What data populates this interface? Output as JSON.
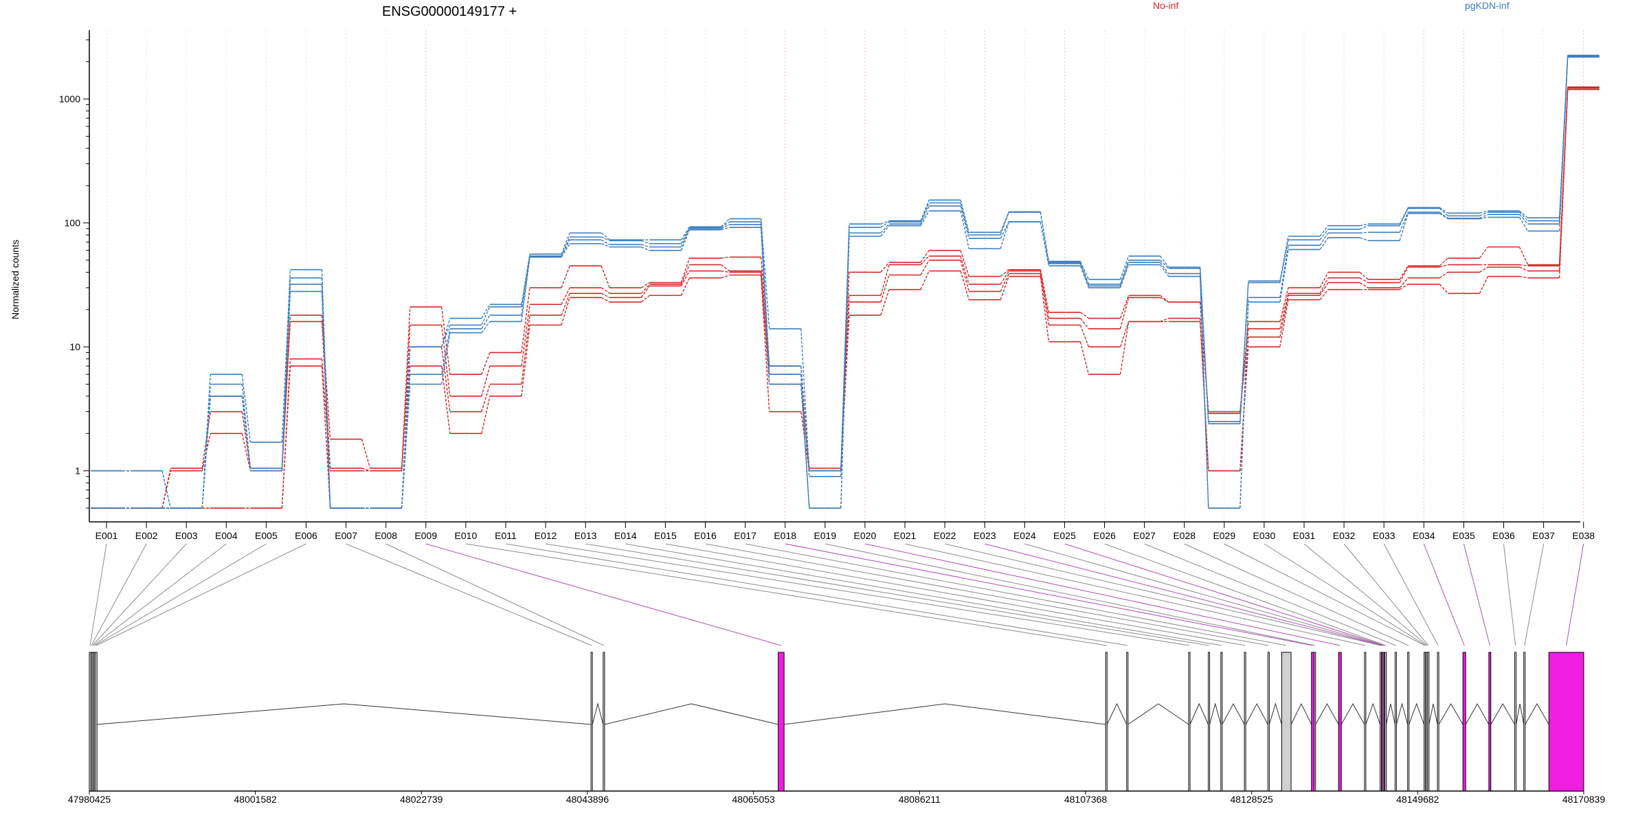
{
  "chart_data": {
    "type": "line",
    "title": "ENSG00000149177 +",
    "ylabel": "Normalized counts",
    "y_scale": "log",
    "ylim": [
      0.5,
      3000
    ],
    "y_ticks": [
      1,
      10,
      100,
      1000
    ],
    "y_tick_labels": [
      "1",
      "10",
      "100",
      "1000"
    ],
    "grid": "vertical dotted lines at each exon",
    "legend_placement": "top",
    "categories": [
      "E001",
      "E002",
      "E003",
      "E004",
      "E005",
      "E006",
      "E007",
      "E008",
      "E009",
      "E010",
      "E011",
      "E012",
      "E013",
      "E014",
      "E015",
      "E016",
      "E017",
      "E018",
      "E019",
      "E020",
      "E021",
      "E022",
      "E023",
      "E024",
      "E025",
      "E026",
      "E027",
      "E028",
      "E029",
      "E030",
      "E031",
      "E032",
      "E033",
      "E034",
      "E035",
      "E036",
      "E037",
      "E038"
    ],
    "groups": [
      {
        "name": "No-inf",
        "color": "#d62728",
        "samples": [
          {
            "values": [
              0.5,
              0.5,
              1.05,
              3.0,
              1.05,
              18,
              1.8,
              1.05,
              21,
              6.0,
              9.0,
              30,
              45,
              30,
              33,
              52,
              53,
              7.0,
              1.05,
              40,
              48,
              60,
              37,
              42,
              19,
              17,
              26,
              23,
              3.0,
              16,
              30,
              40,
              35,
              45,
              52,
              64,
              46,
              1250
            ]
          },
          {
            "values": [
              0.5,
              0.5,
              1.0,
              2.0,
              1.0,
              16,
              1.05,
              1.0,
              15,
              4.0,
              7.0,
              22,
              30,
              27,
              32,
              46,
              41,
              6.0,
              1.0,
              26,
              46,
              54,
              32,
              41,
              17,
              14,
              25,
              23,
              2.9,
              14,
              27,
              36,
              33,
              44,
              46,
              46,
              45,
              1240
            ]
          },
          {
            "values": [
              0.5,
              0.5,
              0.5,
              0.5,
              0.5,
              8,
              1.0,
              1.0,
              10,
              3.0,
              5.0,
              18,
              27,
              25,
              31,
              41,
              40,
              5.0,
              1.0,
              23,
              38,
              50,
              28,
              39,
              15,
              10,
              16,
              17,
              1.0,
              12,
              26,
              33,
              30,
              36,
              40,
              44,
              41,
              1220
            ]
          },
          {
            "values": [
              0.5,
              0.5,
              0.5,
              0.5,
              0.5,
              7,
              0.5,
              0.5,
              7,
              2.0,
              4.0,
              15,
              25,
              23,
              26,
              36,
              38,
              3.0,
              1.0,
              18,
              29,
              41,
              24,
              37,
              11,
              6,
              16,
              16,
              1.0,
              10,
              24,
              29,
              29,
              32,
              27,
              37,
              36,
              1190
            ]
          }
        ]
      },
      {
        "name": "pgKDN-inf",
        "color": "#3b7dbf",
        "samples": [
          {
            "values": [
              1.0,
              1.0,
              0.5,
              6.0,
              1.7,
              42,
              0.5,
              0.5,
              10,
              17,
              22,
              56,
              83,
              73,
              73,
              93,
              108,
              14,
              1.0,
              98,
              104,
              153,
              84,
              123,
              49,
              35,
              54,
              44,
              2.5,
              34,
              78,
              95,
              98,
              133,
              120,
              125,
              110,
              2250
            ]
          },
          {
            "values": [
              1.0,
              1.0,
              0.5,
              5.0,
              1.05,
              36,
              0.5,
              0.5,
              10,
              15,
              21,
              54,
              77,
              72,
              68,
              92,
              102,
              7.0,
              0.9,
              92,
              102,
              145,
              80,
              122,
              48,
              32,
              50,
              43,
              2.4,
              33,
              73,
              89,
              95,
              131,
              114,
              122,
              104,
              2220
            ]
          },
          {
            "values": [
              0.5,
              0.5,
              0.5,
              4.0,
              1.0,
              32,
              0.5,
              0.5,
              6.0,
              14,
              18,
              54,
              73,
              67,
              64,
              90,
              97,
              6.0,
              0.5,
              83,
              98,
              137,
              75,
              102,
              47,
              31,
              48,
              39,
              0.5,
              25,
              66,
              83,
              84,
              122,
              109,
              117,
              98,
              2210
            ]
          },
          {
            "values": [
              0.5,
              0.5,
              0.5,
              4.0,
              1.0,
              28,
              0.5,
              0.5,
              5.0,
              13,
              16,
              53,
              68,
              64,
              60,
              88,
              92,
              5.0,
              0.5,
              78,
              95,
              125,
              62,
              102,
              45,
              30,
              46,
              37,
              0.5,
              23,
              61,
              76,
              72,
              119,
              108,
              111,
              86,
              2180
            ]
          }
        ]
      }
    ],
    "gene_model": {
      "coordinate_ticks": [
        "47980425",
        "48001582",
        "48022739",
        "48043896",
        "48065053",
        "48086211",
        "48107368",
        "48128525",
        "48149682",
        "48170839"
      ],
      "coordinate_range": [
        47980425,
        48170839
      ],
      "exons": [
        {
          "id": "E001",
          "start": 47980425,
          "end": 47980600,
          "highlight": false
        },
        {
          "id": "E002",
          "start": 47980600,
          "end": 47980750,
          "highlight": false
        },
        {
          "id": "E003",
          "start": 47980750,
          "end": 47980900,
          "highlight": false
        },
        {
          "id": "E004",
          "start": 47980900,
          "end": 47981050,
          "highlight": false
        },
        {
          "id": "E005",
          "start": 47981050,
          "end": 47981200,
          "highlight": false
        },
        {
          "id": "E006",
          "start": 47981200,
          "end": 47981400,
          "highlight": false
        },
        {
          "id": "E007",
          "start": 48044350,
          "end": 48044500,
          "highlight": false
        },
        {
          "id": "E008",
          "start": 48045900,
          "end": 48046050,
          "highlight": false
        },
        {
          "id": "E009",
          "start": 48068200,
          "end": 48068950,
          "highlight": true
        },
        {
          "id": "E010",
          "start": 48109930,
          "end": 48110000,
          "highlight": false
        },
        {
          "id": "E011",
          "start": 48112600,
          "end": 48112750,
          "highlight": false
        },
        {
          "id": "E012",
          "start": 48120500,
          "end": 48120650,
          "highlight": false
        },
        {
          "id": "E013",
          "start": 48123000,
          "end": 48123150,
          "highlight": false
        },
        {
          "id": "E014",
          "start": 48124600,
          "end": 48124750,
          "highlight": false
        },
        {
          "id": "E015",
          "start": 48127600,
          "end": 48127750,
          "highlight": false
        },
        {
          "id": "E016",
          "start": 48130600,
          "end": 48130750,
          "highlight": false
        },
        {
          "id": "E017",
          "start": 48132350,
          "end": 48133550,
          "highlight": false,
          "shaded": true
        },
        {
          "id": "E018",
          "start": 48136150,
          "end": 48136500,
          "highlight": true
        },
        {
          "id": "E019",
          "start": 48136500,
          "end": 48136650,
          "highlight": false
        },
        {
          "id": "E020",
          "start": 48139600,
          "end": 48139950,
          "highlight": true
        },
        {
          "id": "E021",
          "start": 48142900,
          "end": 48143050,
          "highlight": false
        },
        {
          "id": "E022",
          "start": 48144900,
          "end": 48145050,
          "highlight": false
        },
        {
          "id": "E023",
          "start": 48145050,
          "end": 48145200,
          "highlight": true
        },
        {
          "id": "E024",
          "start": 48145200,
          "end": 48145350,
          "highlight": false
        },
        {
          "id": "E025",
          "start": 48145350,
          "end": 48145500,
          "highlight": true
        },
        {
          "id": "E026",
          "start": 48145500,
          "end": 48145600,
          "highlight": false
        },
        {
          "id": "E027",
          "start": 48146800,
          "end": 48146950,
          "highlight": false
        },
        {
          "id": "E028",
          "start": 48148400,
          "end": 48148550,
          "highlight": false
        },
        {
          "id": "E029",
          "start": 48150500,
          "end": 48150650,
          "highlight": false
        },
        {
          "id": "E030",
          "start": 48150650,
          "end": 48150800,
          "highlight": false
        },
        {
          "id": "E031",
          "start": 48150800,
          "end": 48150950,
          "highlight": false
        },
        {
          "id": "E032",
          "start": 48150950,
          "end": 48151100,
          "highlight": false
        },
        {
          "id": "E033",
          "start": 48152200,
          "end": 48152350,
          "highlight": false
        },
        {
          "id": "E034",
          "start": 48155450,
          "end": 48155800,
          "highlight": true
        },
        {
          "id": "E035",
          "start": 48158750,
          "end": 48159000,
          "highlight": true
        },
        {
          "id": "E036",
          "start": 48162050,
          "end": 48162200,
          "highlight": false
        },
        {
          "id": "E037",
          "start": 48163200,
          "end": 48163350,
          "highlight": false
        },
        {
          "id": "E038",
          "start": 48166400,
          "end": 48170839,
          "highlight": true
        }
      ]
    }
  }
}
